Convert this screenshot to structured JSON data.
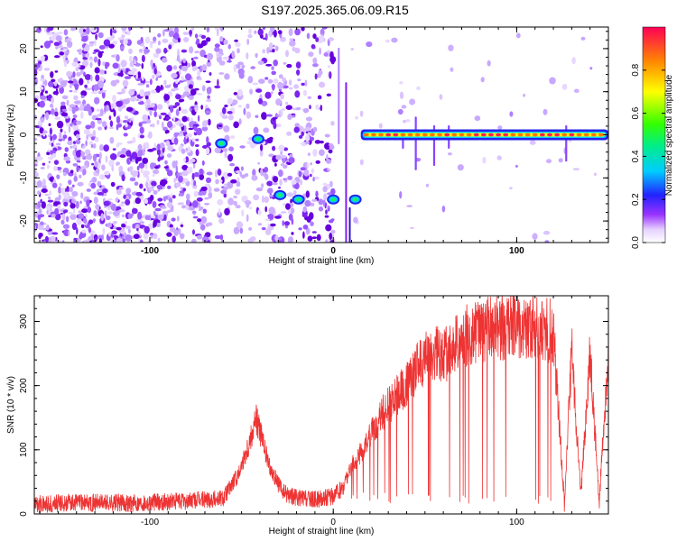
{
  "title": "S197.2025.365.06.09.R15",
  "chart_data": [
    {
      "type": "heatmap",
      "xlabel": "Height of straight line (km)",
      "ylabel": "Frequency (Hz)",
      "xlim": [
        -163,
        150
      ],
      "ylim": [
        -25,
        25
      ],
      "x_ticks": [
        "-100",
        "0",
        "100"
      ],
      "x_tick_values": [
        -100,
        0,
        100
      ],
      "y_ticks": [
        "-20",
        "-10",
        "0",
        "10",
        "20"
      ],
      "y_tick_values": [
        -20,
        -10,
        0,
        10,
        20
      ],
      "colorbar": {
        "label": "Normalized spectral amplitude",
        "ticks": [
          "0.0",
          "0.2",
          "0.4",
          "0.6",
          "0.8"
        ],
        "tick_values": [
          0.0,
          0.2,
          0.4,
          0.6,
          0.8
        ],
        "range": [
          0,
          1
        ]
      },
      "features": [
        {
          "name": "carrier line",
          "x_start": 15,
          "x_end": 150,
          "frequency": 0,
          "amplitude": 0.85
        },
        {
          "name": "blob",
          "x": -61,
          "frequency": -2,
          "amplitude": 0.35
        },
        {
          "name": "blob",
          "x": -41,
          "frequency": -1,
          "amplitude": 0.35
        },
        {
          "name": "blob",
          "x": -29,
          "frequency": -14,
          "amplitude": 0.35
        },
        {
          "name": "blob",
          "x": -19,
          "frequency": -15,
          "amplitude": 0.35
        },
        {
          "name": "blob",
          "x": 0,
          "frequency": -15,
          "amplitude": 0.4
        },
        {
          "name": "blob",
          "x": 12,
          "frequency": -15,
          "amplitude": 0.35
        }
      ]
    },
    {
      "type": "line",
      "xlabel": "Height of straight line (km)",
      "ylabel": "SNR (10 * v/v)",
      "xlim": [
        -163,
        150
      ],
      "ylim": [
        0,
        340
      ],
      "x_ticks": [
        "-100",
        "0",
        "100"
      ],
      "x_tick_values": [
        -100,
        0,
        100
      ],
      "y_ticks": [
        "0",
        "100",
        "200",
        "300"
      ],
      "y_tick_values": [
        0,
        100,
        200,
        300
      ],
      "color": "#ee3333",
      "x": [
        -163,
        -140,
        -110,
        -80,
        -60,
        -52,
        -46,
        -42,
        -35,
        -28,
        -20,
        -10,
        0,
        5,
        10,
        15,
        20,
        25,
        30,
        35,
        40,
        45,
        50,
        55,
        60,
        65,
        70,
        80,
        90,
        100,
        110,
        120,
        126,
        130,
        135,
        140,
        145,
        150
      ],
      "y": [
        15,
        18,
        17,
        20,
        25,
        60,
        110,
        150,
        75,
        35,
        25,
        22,
        28,
        40,
        75,
        95,
        120,
        150,
        170,
        185,
        200,
        225,
        240,
        250,
        245,
        260,
        275,
        285,
        290,
        295,
        290,
        285,
        15,
        255,
        30,
        250,
        20,
        260
      ]
    }
  ]
}
